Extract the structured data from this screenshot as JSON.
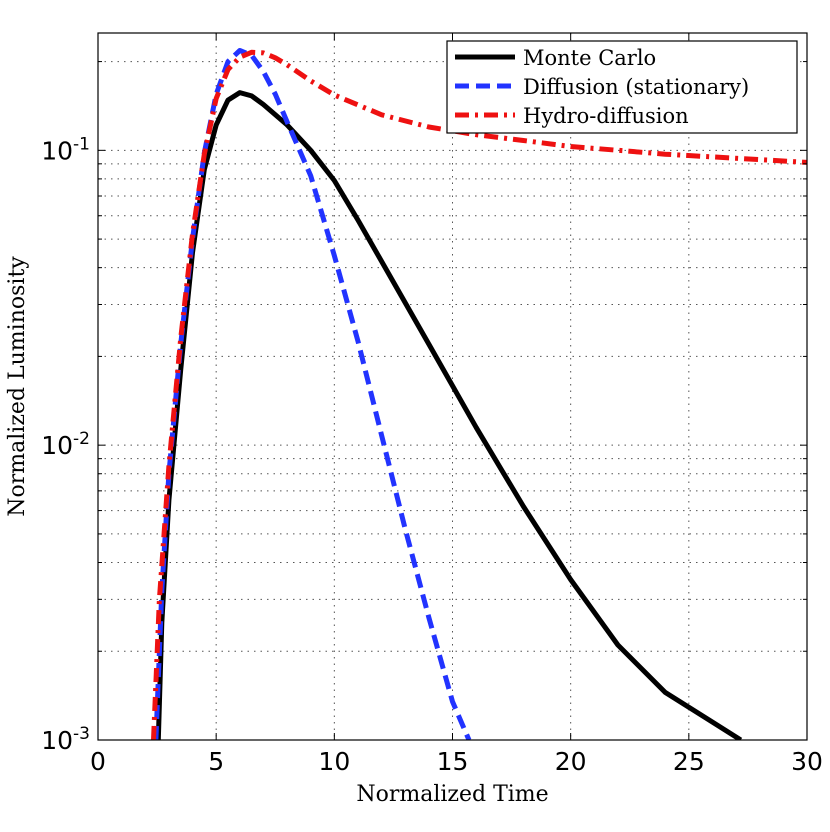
{
  "chart_data": {
    "type": "line",
    "xlabel": "Normalized Time",
    "ylabel": "Normalized Luminosity",
    "xlim": [
      0,
      30
    ],
    "ylim": [
      0.001,
      0.25
    ],
    "yscale": "log",
    "grid": true,
    "legend_position": "top-right",
    "x_ticks": [
      0,
      5,
      10,
      15,
      20,
      25,
      30
    ],
    "x_tick_labels": [
      "0",
      "5",
      "10",
      "15",
      "20",
      "25",
      "30"
    ],
    "y_ticks": [
      0.001,
      0.01,
      0.1
    ],
    "y_tick_labels": [
      {
        "base": "10",
        "exp": "-3"
      },
      {
        "base": "10",
        "exp": "-2"
      },
      {
        "base": "10",
        "exp": "-1"
      }
    ],
    "series": [
      {
        "name": "Monte Carlo",
        "color": "#000000",
        "dash": "solid",
        "x": [
          2.55,
          2.7,
          3.0,
          3.5,
          4.0,
          4.5,
          5.0,
          5.5,
          6.0,
          6.5,
          7.0,
          8.0,
          9.0,
          10.0,
          11.0,
          12.0,
          14.0,
          16.0,
          18.0,
          20.0,
          22.0,
          24.0,
          26.0,
          27.2
        ],
        "y": [
          0.001,
          0.0025,
          0.0065,
          0.018,
          0.045,
          0.086,
          0.122,
          0.148,
          0.157,
          0.153,
          0.143,
          0.122,
          0.1,
          0.079,
          0.058,
          0.042,
          0.022,
          0.0115,
          0.0062,
          0.0035,
          0.0021,
          0.00145,
          0.00115,
          0.001
        ]
      },
      {
        "name": "Diffusion (stationary)",
        "color": "#2233ff",
        "dash": "dashed",
        "x": [
          2.45,
          2.7,
          3.0,
          3.5,
          4.0,
          4.5,
          5.0,
          5.5,
          6.0,
          6.5,
          7.0,
          7.5,
          8.0,
          9.0,
          10.0,
          11.0,
          12.0,
          13.0,
          14.0,
          15.0,
          15.7
        ],
        "y": [
          0.001,
          0.0032,
          0.008,
          0.022,
          0.05,
          0.098,
          0.155,
          0.2,
          0.218,
          0.21,
          0.185,
          0.155,
          0.125,
          0.082,
          0.044,
          0.0225,
          0.0108,
          0.0052,
          0.0026,
          0.00135,
          0.001
        ]
      },
      {
        "name": "Hydro-diffusion",
        "color": "#ee1111",
        "dash": "dashdot",
        "x": [
          2.35,
          2.6,
          3.0,
          3.5,
          4.0,
          4.5,
          5.0,
          5.5,
          6.0,
          6.5,
          7.0,
          7.5,
          8.0,
          9.0,
          10.0,
          12.0,
          14.0,
          16.0,
          18.0,
          20.0,
          22.0,
          24.0,
          26.0,
          28.0,
          30.0
        ],
        "y": [
          0.001,
          0.003,
          0.0085,
          0.023,
          0.052,
          0.097,
          0.15,
          0.188,
          0.207,
          0.215,
          0.214,
          0.206,
          0.195,
          0.172,
          0.154,
          0.132,
          0.12,
          0.113,
          0.108,
          0.103,
          0.1,
          0.097,
          0.095,
          0.093,
          0.091
        ]
      }
    ]
  }
}
